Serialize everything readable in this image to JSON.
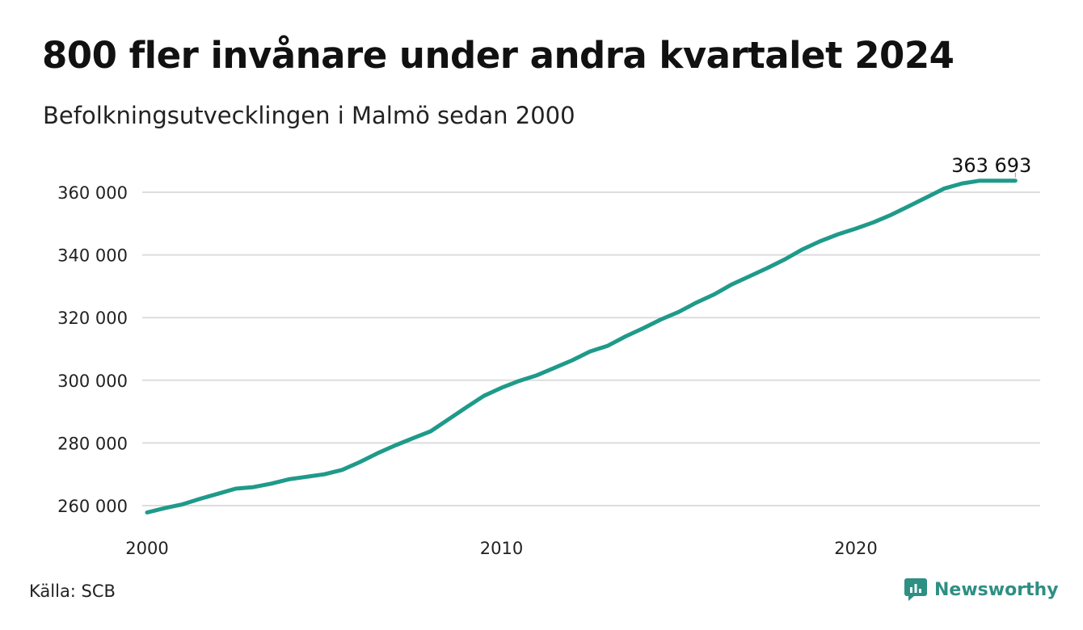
{
  "header": {
    "title": "800 fler invånare under andra kvartalet 2024",
    "subtitle": "Befolkningsutvecklingen i Malmö sedan 2000"
  },
  "footer": {
    "source": "Källa: SCB",
    "brand": "Newsworthy"
  },
  "colors": {
    "line": "#1f9a8a",
    "grid": "#dddddd",
    "brand": "#2e8f83"
  },
  "chart_data": {
    "type": "line",
    "title": "800 fler invånare under andra kvartalet 2024",
    "subtitle": "Befolkningsutvecklingen i Malmö sedan 2000",
    "xlabel": "",
    "ylabel": "",
    "xlim": [
      2000,
      2024.5
    ],
    "ylim": [
      256000,
      367000
    ],
    "x_ticks": [
      2000,
      2010,
      2020
    ],
    "x_tick_labels": [
      "2000",
      "2010",
      "2020"
    ],
    "y_ticks": [
      260000,
      280000,
      300000,
      320000,
      340000,
      360000
    ],
    "y_tick_labels": [
      "260 000",
      "280 000",
      "300 000",
      "320 000",
      "340 000",
      "360 000"
    ],
    "grid": "horizontal",
    "legend": "none",
    "end_label": "363 693",
    "series": [
      {
        "x": [
          2000.0,
          2000.5,
          2001.0,
          2001.5,
          2002.0,
          2002.5,
          2003.0,
          2003.5,
          2004.0,
          2004.5,
          2005.0,
          2005.5,
          2006.0,
          2006.5,
          2007.0,
          2007.5,
          2008.0,
          2008.5,
          2009.0,
          2009.5,
          2010.0,
          2010.5,
          2011.0,
          2011.5,
          2012.0,
          2012.5,
          2013.0,
          2013.5,
          2014.0,
          2014.5,
          2015.0,
          2015.5,
          2016.0,
          2016.5,
          2017.0,
          2017.5,
          2018.0,
          2018.5,
          2019.0,
          2019.5,
          2020.0,
          2020.5,
          2021.0,
          2021.5,
          2022.0,
          2022.5,
          2023.0,
          2023.5,
          2024.0,
          2024.5
        ],
        "values": [
          257800,
          259200,
          260400,
          262200,
          263800,
          265400,
          265900,
          267000,
          268400,
          269200,
          270000,
          271400,
          273900,
          276700,
          279200,
          281500,
          283700,
          287500,
          291300,
          295000,
          297600,
          299800,
          301600,
          304000,
          306400,
          309200,
          311000,
          314000,
          316600,
          319400,
          321800,
          324800,
          327400,
          330600,
          333200,
          335800,
          338600,
          341800,
          344400,
          346600,
          348400,
          350400,
          352800,
          355600,
          358400,
          361200,
          362800,
          363693,
          363693,
          363693
        ]
      }
    ]
  }
}
